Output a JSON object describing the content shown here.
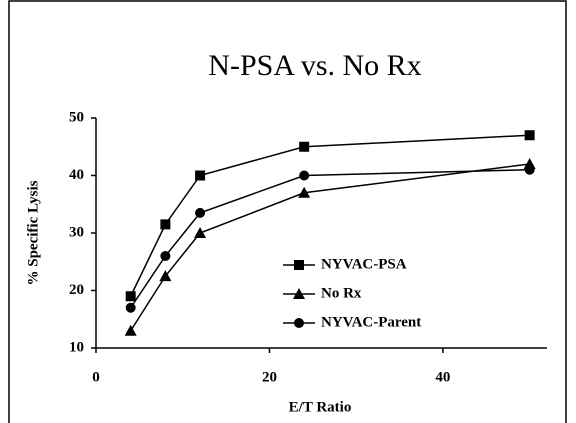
{
  "chart_data": {
    "type": "line",
    "title": "N-PSA vs. No Rx",
    "x_label": "E/T Ratio",
    "y_label": "% Specific Lysis",
    "x": [
      4,
      8,
      12,
      24,
      50
    ],
    "series": [
      {
        "name": "NYVAC-PSA",
        "color": "#000000",
        "marker": "square",
        "values": [
          19,
          31.5,
          40,
          45,
          47
        ]
      },
      {
        "name": "No Rx",
        "color": "#000000",
        "marker": "triangle",
        "values": [
          13,
          22.5,
          30,
          37,
          42
        ]
      },
      {
        "name": "NYVAC-Parent",
        "color": "#000000",
        "marker": "circle",
        "values": [
          17,
          26,
          33.5,
          40,
          41
        ]
      }
    ],
    "xlim": [
      0,
      52
    ],
    "xticks": [
      0,
      20,
      40
    ],
    "ylim": [
      10,
      50
    ],
    "yticks": [
      10,
      20,
      30,
      40,
      50
    ],
    "grid": false
  }
}
